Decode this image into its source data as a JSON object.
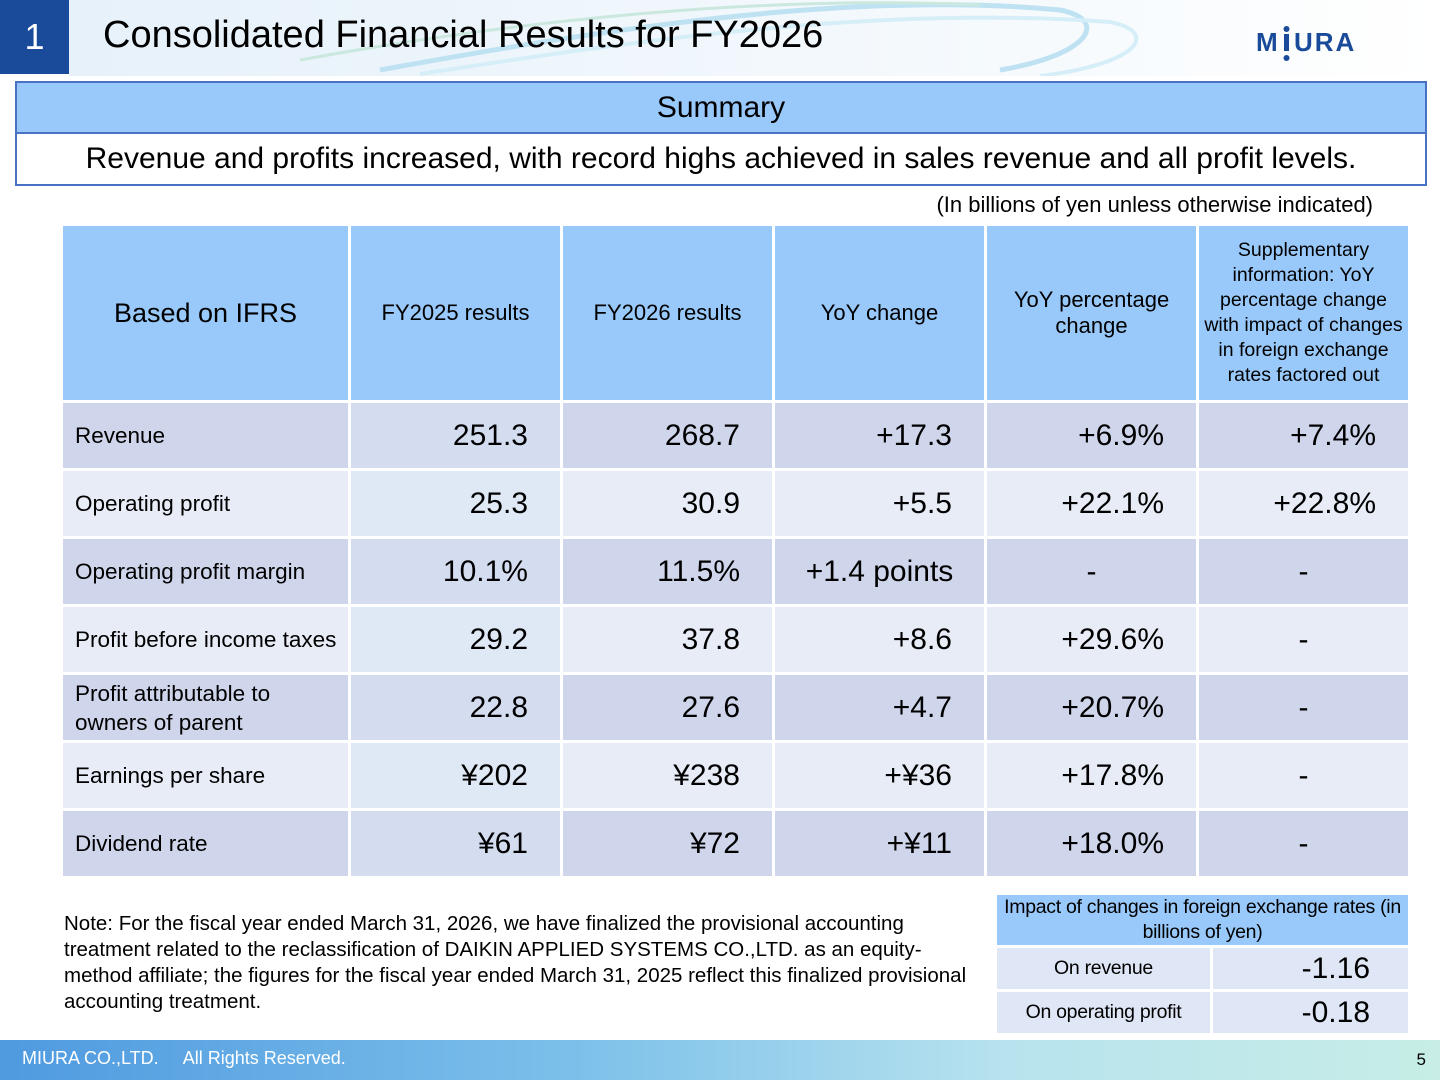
{
  "header": {
    "slide_number": "1",
    "title": "Consolidated Financial Results for FY2026",
    "logo_text": "MIURA"
  },
  "summary": {
    "heading": "Summary",
    "text": "Revenue and profits increased, with record highs achieved in sales revenue and all profit levels."
  },
  "unit_note": "(In billions of yen unless otherwise indicated)",
  "table": {
    "columns": [
      "Based on IFRS",
      "FY2025 results",
      "FY2026 results",
      "YoY change",
      "YoY percentage change",
      "Supplementary information: YoY percentage change with impact of changes in foreign exchange rates factored out"
    ],
    "rows": [
      {
        "label": "Revenue",
        "fy2025": "251.3",
        "fy2026": "268.7",
        "yoy": "+17.3",
        "yoy_pct": "+6.9%",
        "fx_pct": "+7.4%"
      },
      {
        "label": "Operating profit",
        "fy2025": "25.3",
        "fy2026": "30.9",
        "yoy": "+5.5",
        "yoy_pct": "+22.1%",
        "fx_pct": "+22.8%"
      },
      {
        "label": "Operating profit margin",
        "fy2025": "10.1%",
        "fy2026": "11.5%",
        "yoy": "+1.4 points",
        "yoy_pct": "-",
        "fx_pct": "-"
      },
      {
        "label": "Profit before income taxes",
        "fy2025": "29.2",
        "fy2026": "37.8",
        "yoy": "+8.6",
        "yoy_pct": "+29.6%",
        "fx_pct": "-"
      },
      {
        "label": "Profit attributable to owners of parent",
        "fy2025": "22.8",
        "fy2026": "27.6",
        "yoy": "+4.7",
        "yoy_pct": "+20.7%",
        "fx_pct": "-"
      },
      {
        "label": "Earnings per share",
        "fy2025": "¥202",
        "fy2026": "¥238",
        "yoy": "+¥36",
        "yoy_pct": "+17.8%",
        "fx_pct": "-"
      },
      {
        "label": "Dividend rate",
        "fy2025": "¥61",
        "fy2026": "¥72",
        "yoy": "+¥11",
        "yoy_pct": "+18.0%",
        "fx_pct": "-"
      }
    ]
  },
  "note": "Note: For the fiscal year ended March 31, 2026, we have finalized the provisional accounting treatment related to the reclassification of DAIKIN APPLIED SYSTEMS CO.,LTD. as an equity-method affiliate; the figures for the fiscal year ended March 31, 2025 reflect this finalized provisional accounting treatment.",
  "fx_impact": {
    "heading": "Impact of changes in foreign exchange rates (in billions of yen)",
    "rows": [
      {
        "label": "On revenue",
        "value": "-1.16"
      },
      {
        "label": "On operating profit",
        "value": "-0.18"
      }
    ]
  },
  "footer": {
    "copyright": "MIURA CO.,LTD.     All Rights Reserved.",
    "page_number": "5"
  },
  "colors": {
    "header_blue": "#1a4a9a",
    "table_header": "#99c9fb",
    "row_dark": "#cfd6ec",
    "row_light": "#e8ecf7"
  }
}
